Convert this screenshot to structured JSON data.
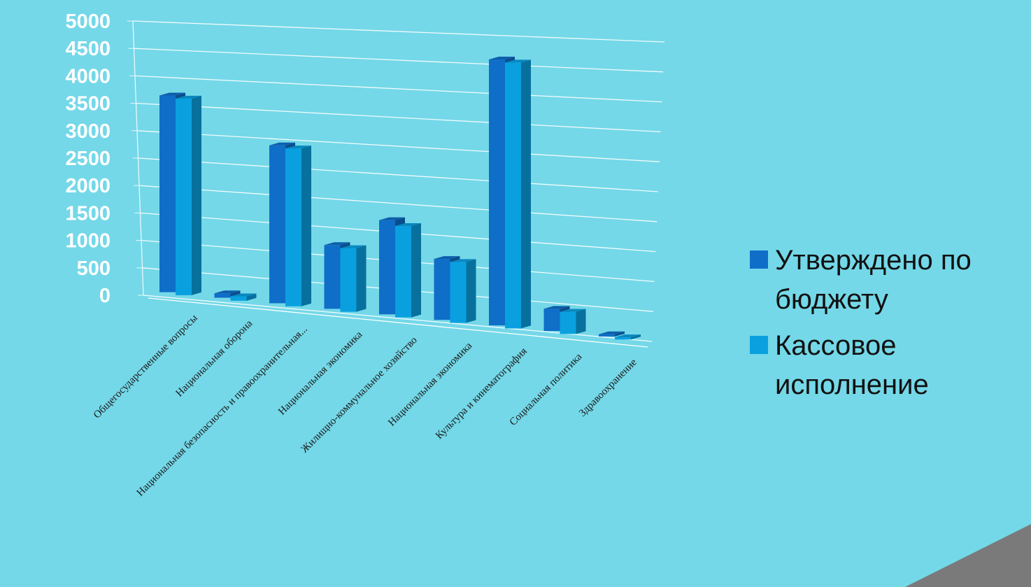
{
  "chart_data": {
    "type": "bar",
    "title": "",
    "xlabel": "",
    "ylabel": "",
    "ylim": [
      0,
      5000
    ],
    "yticks": [
      0,
      500,
      1000,
      1500,
      2000,
      2500,
      3000,
      3500,
      4000,
      4500,
      5000
    ],
    "grid": true,
    "legend_position": "right",
    "categories": [
      "Общегосударственные вопросы",
      "Национальная оборона",
      "Национальная безопасность и правоохранительная...",
      "Национальная экономика",
      "Жилищно-коммунальное хозяйство",
      "Национальная экономика",
      "Культура и кинематография",
      "Социальная политика",
      "Здравоохранение"
    ],
    "series": [
      {
        "name": "Утверждено по бюджету",
        "color": "#0f6ec8",
        "values": [
          3550,
          80,
          2850,
          1150,
          1700,
          1100,
          4800,
          400,
          40
        ]
      },
      {
        "name": "Кассовое исполнение",
        "color": "#0aa0e0",
        "values": [
          3550,
          80,
          2850,
          1150,
          1650,
          1100,
          4800,
          400,
          40
        ]
      }
    ]
  },
  "legend": {
    "items": [
      {
        "label": "Утверждено по бюджету",
        "color": "#0f6ec8"
      },
      {
        "label": "Кассовое исполнение",
        "color": "#0aa0e0"
      }
    ]
  }
}
